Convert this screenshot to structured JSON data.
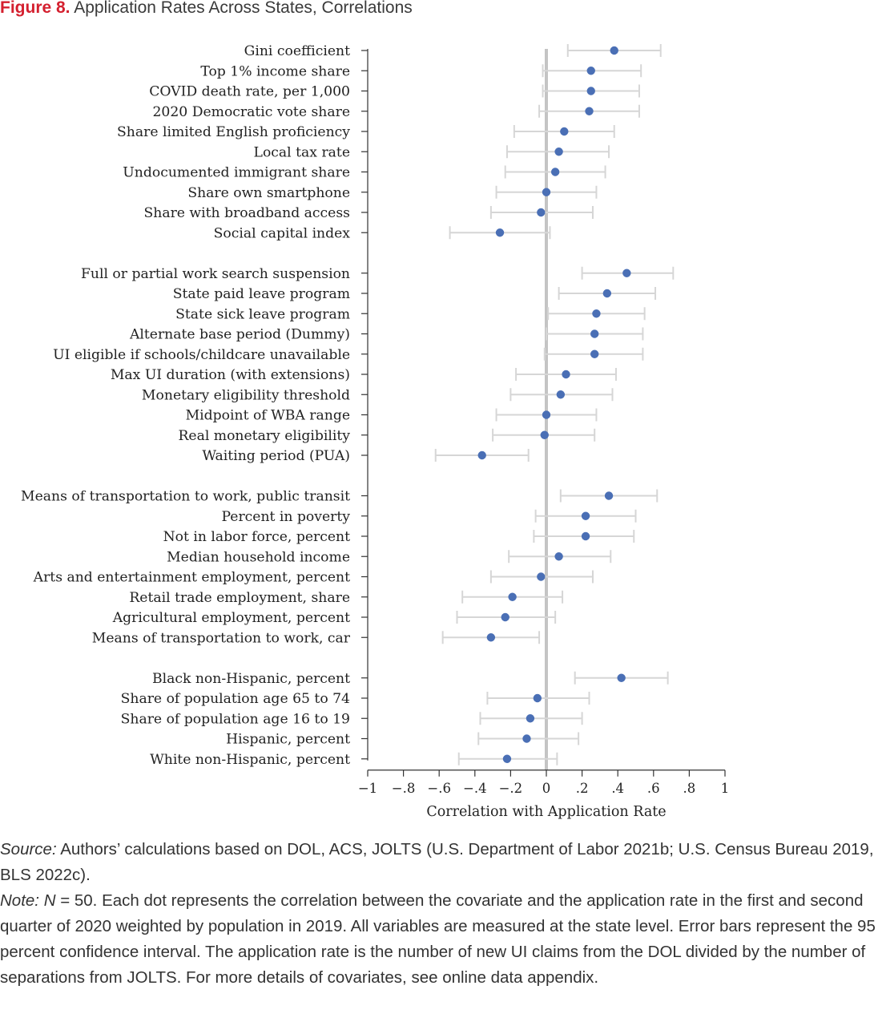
{
  "figure": {
    "label": "Figure 8.",
    "title": "Application Rates Across States, Correlations"
  },
  "chart_data": {
    "type": "scatter",
    "subtype": "dot-and-whisker",
    "xlabel": "Correlation with Application Rate",
    "xlim": [
      -1,
      1
    ],
    "x_ticks": [
      -1,
      -0.8,
      -0.6,
      -0.4,
      -0.2,
      0,
      0.2,
      0.4,
      0.6,
      0.8,
      1
    ],
    "x_tick_labels": [
      "−1",
      "−.8",
      "−.6",
      "−.4",
      "−.2",
      "0",
      ".2",
      ".4",
      ".6",
      ".8",
      "1"
    ],
    "reference_line": 0,
    "grid": false,
    "colors": {
      "point": "#4a6fb5",
      "error_bar": "#d6d6d6",
      "zero_line": "#c4c4c4",
      "axis": "#333333"
    },
    "groups": [
      {
        "items": [
          {
            "label": "Gini coefficient",
            "value": 0.38,
            "ci": [
              0.12,
              0.64
            ]
          },
          {
            "label": "Top 1% income share",
            "value": 0.25,
            "ci": [
              -0.02,
              0.53
            ]
          },
          {
            "label": "COVID death rate, per 1,000",
            "value": 0.25,
            "ci": [
              -0.02,
              0.52
            ]
          },
          {
            "label": "2020 Democratic vote share",
            "value": 0.24,
            "ci": [
              -0.04,
              0.52
            ]
          },
          {
            "label": "Share limited English proficiency",
            "value": 0.1,
            "ci": [
              -0.18,
              0.38
            ]
          },
          {
            "label": "Local tax rate",
            "value": 0.07,
            "ci": [
              -0.22,
              0.35
            ]
          },
          {
            "label": "Undocumented immigrant share",
            "value": 0.05,
            "ci": [
              -0.23,
              0.33
            ]
          },
          {
            "label": "Share own smartphone",
            "value": 0.0,
            "ci": [
              -0.28,
              0.28
            ]
          },
          {
            "label": "Share with broadband access",
            "value": -0.03,
            "ci": [
              -0.31,
              0.26
            ]
          },
          {
            "label": "Social capital index",
            "value": -0.26,
            "ci": [
              -0.54,
              0.02
            ]
          }
        ]
      },
      {
        "items": [
          {
            "label": "Full or partial work search suspension",
            "value": 0.45,
            "ci": [
              0.2,
              0.71
            ]
          },
          {
            "label": "State paid leave program",
            "value": 0.34,
            "ci": [
              0.07,
              0.61
            ]
          },
          {
            "label": "State sick leave program",
            "value": 0.28,
            "ci": [
              0.01,
              0.55
            ]
          },
          {
            "label": "Alternate base period (Dummy)",
            "value": 0.27,
            "ci": [
              0.0,
              0.54
            ]
          },
          {
            "label": "UI eligible if schools/childcare unavailable",
            "value": 0.27,
            "ci": [
              -0.01,
              0.54
            ]
          },
          {
            "label": "Max UI duration (with extensions)",
            "value": 0.11,
            "ci": [
              -0.17,
              0.39
            ]
          },
          {
            "label": "Monetary eligibility threshold",
            "value": 0.08,
            "ci": [
              -0.2,
              0.37
            ]
          },
          {
            "label": "Midpoint of WBA range",
            "value": 0.0,
            "ci": [
              -0.28,
              0.28
            ]
          },
          {
            "label": "Real monetary eligibility",
            "value": -0.01,
            "ci": [
              -0.3,
              0.27
            ]
          },
          {
            "label": "Waiting period (PUA)",
            "value": -0.36,
            "ci": [
              -0.62,
              -0.1
            ]
          }
        ]
      },
      {
        "items": [
          {
            "label": "Means of transportation to work, public transit",
            "value": 0.35,
            "ci": [
              0.08,
              0.62
            ]
          },
          {
            "label": "Percent in poverty",
            "value": 0.22,
            "ci": [
              -0.06,
              0.5
            ]
          },
          {
            "label": "Not in labor force, percent",
            "value": 0.22,
            "ci": [
              -0.07,
              0.49
            ]
          },
          {
            "label": "Median household income",
            "value": 0.07,
            "ci": [
              -0.21,
              0.36
            ]
          },
          {
            "label": "Arts and entertainment employment, percent",
            "value": -0.03,
            "ci": [
              -0.31,
              0.26
            ]
          },
          {
            "label": "Retail trade employment, share",
            "value": -0.19,
            "ci": [
              -0.47,
              0.09
            ]
          },
          {
            "label": "Agricultural employment, percent",
            "value": -0.23,
            "ci": [
              -0.5,
              0.05
            ]
          },
          {
            "label": "Means of transportation to work, car",
            "value": -0.31,
            "ci": [
              -0.58,
              -0.04
            ]
          }
        ]
      },
      {
        "items": [
          {
            "label": "Black non-Hispanic, percent",
            "value": 0.42,
            "ci": [
              0.16,
              0.68
            ]
          },
          {
            "label": "Share of population age 65 to 74",
            "value": -0.05,
            "ci": [
              -0.33,
              0.24
            ]
          },
          {
            "label": "Share of population age 16 to 19",
            "value": -0.09,
            "ci": [
              -0.37,
              0.2
            ]
          },
          {
            "label": "Hispanic, percent",
            "value": -0.11,
            "ci": [
              -0.38,
              0.18
            ]
          },
          {
            "label": "White non-Hispanic, percent",
            "value": -0.22,
            "ci": [
              -0.49,
              0.06
            ]
          }
        ]
      }
    ]
  },
  "source_note": {
    "source_label": "Source:",
    "source_text": " Authors’ calculations based on DOL, ACS, JOLTS (U.S. Department of Labor 2021b; U.S. Census Bureau 2019, BLS 2022c).",
    "note_label": "Note:",
    "note_n": "N",
    "note_text": " = 50. Each dot represents the correlation between the covariate and the application rate in the first and second quarter of 2020 weighted by population in 2019. All variables are measured at the state level. Error bars represent the 95 percent confidence interval. The application rate is the number of new UI claims from the DOL divided by the number of separations from JOLTS. For more details of covariates, see online data appendix."
  }
}
